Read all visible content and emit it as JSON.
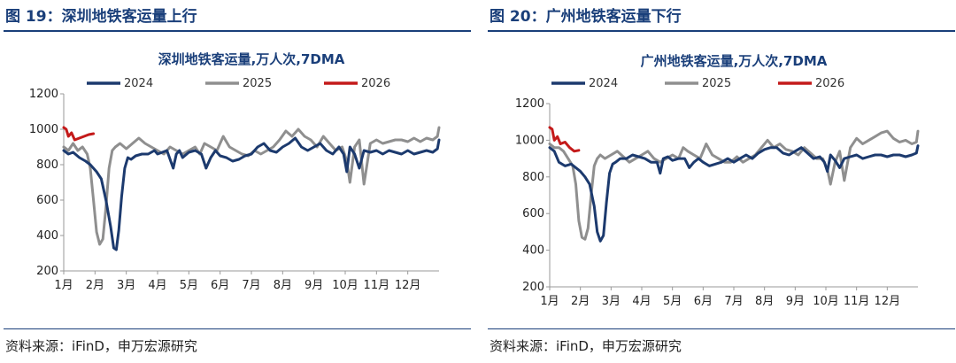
{
  "charts": [
    {
      "fig_title": "图 19：深圳地铁客运量上行",
      "source": "资料来源：iFinD，申万宏源研究",
      "chart_data": {
        "type": "line",
        "title": "深圳地铁客运量,万人次,7DMA",
        "ylim": [
          200,
          1200
        ],
        "yticks": [
          200,
          400,
          600,
          800,
          1000,
          1200
        ],
        "xlim": [
          0,
          12
        ],
        "xticks": [
          "1月",
          "2月",
          "3月",
          "4月",
          "5月",
          "6月",
          "7月",
          "8月",
          "9月",
          "10月",
          "11月",
          "12月"
        ],
        "legend_position": "top",
        "grid": false,
        "series": [
          {
            "name": "2024",
            "color": "#1c3a6e",
            "x": [
              0,
              0.15,
              0.3,
              0.5,
              0.7,
              0.85,
              0.95,
              1.05,
              1.2,
              1.35,
              1.5,
              1.6,
              1.68,
              1.76,
              1.85,
              1.95,
              2.05,
              2.15,
              2.3,
              2.5,
              2.7,
              2.9,
              3.0,
              3.15,
              3.3,
              3.5,
              3.6,
              3.7,
              3.8,
              4.0,
              4.2,
              4.4,
              4.55,
              4.7,
              4.85,
              5.0,
              5.2,
              5.4,
              5.6,
              5.8,
              6.0,
              6.2,
              6.4,
              6.6,
              6.8,
              7.0,
              7.2,
              7.4,
              7.6,
              7.8,
              8.0,
              8.2,
              8.4,
              8.6,
              8.8,
              8.95,
              9.05,
              9.15,
              9.3,
              9.45,
              9.6,
              9.8,
              10.0,
              10.2,
              10.4,
              10.6,
              10.8,
              11.0,
              11.2,
              11.4,
              11.6,
              11.8,
              11.95,
              12.0
            ],
            "y": [
              880,
              860,
              870,
              840,
              820,
              800,
              780,
              760,
              720,
              600,
              450,
              330,
              320,
              430,
              620,
              780,
              840,
              830,
              850,
              860,
              860,
              880,
              860,
              870,
              880,
              780,
              860,
              880,
              840,
              870,
              880,
              860,
              780,
              840,
              880,
              850,
              840,
              820,
              830,
              850,
              860,
              900,
              920,
              880,
              870,
              900,
              920,
              950,
              900,
              880,
              900,
              920,
              880,
              860,
              900,
              860,
              760,
              900,
              860,
              780,
              880,
              870,
              880,
              860,
              880,
              870,
              860,
              880,
              860,
              870,
              880,
              870,
              890,
              940
            ]
          },
          {
            "name": "2025",
            "color": "#8f8f8f",
            "x": [
              0,
              0.15,
              0.3,
              0.45,
              0.6,
              0.75,
              0.85,
              0.95,
              1.05,
              1.15,
              1.25,
              1.35,
              1.45,
              1.55,
              1.65,
              1.8,
              2.0,
              2.2,
              2.4,
              2.6,
              2.8,
              3.0,
              3.2,
              3.4,
              3.6,
              3.8,
              4.0,
              4.2,
              4.35,
              4.5,
              4.7,
              4.9,
              5.1,
              5.3,
              5.5,
              5.7,
              5.9,
              6.1,
              6.3,
              6.5,
              6.7,
              6.9,
              7.1,
              7.3,
              7.5,
              7.7,
              7.9,
              8.1,
              8.3,
              8.5,
              8.7,
              8.9,
              9.05,
              9.15,
              9.3,
              9.45,
              9.6,
              9.8,
              10.0,
              10.2,
              10.4,
              10.6,
              10.8,
              11.0,
              11.2,
              11.4,
              11.6,
              11.8,
              11.95,
              12.0
            ],
            "y": [
              900,
              880,
              920,
              880,
              900,
              860,
              780,
              600,
              420,
              350,
              380,
              560,
              780,
              880,
              900,
              920,
              890,
              920,
              950,
              920,
              900,
              880,
              860,
              900,
              880,
              860,
              880,
              900,
              860,
              920,
              900,
              880,
              960,
              900,
              880,
              860,
              850,
              880,
              860,
              880,
              900,
              940,
              990,
              960,
              1000,
              960,
              940,
              900,
              960,
              920,
              880,
              900,
              820,
              700,
              900,
              940,
              690,
              920,
              940,
              920,
              930,
              940,
              940,
              930,
              950,
              930,
              950,
              940,
              960,
              1010
            ]
          },
          {
            "name": "2026",
            "color": "#c41a1a",
            "x": [
              0,
              0.08,
              0.15,
              0.25,
              0.35,
              0.5,
              0.65,
              0.8,
              0.95
            ],
            "y": [
              1010,
              1000,
              960,
              980,
              940,
              950,
              960,
              970,
              975
            ]
          }
        ]
      }
    },
    {
      "fig_title": "图 20：广州地铁客运量下行",
      "source": "资料来源：iFinD，申万宏源研究",
      "chart_data": {
        "type": "line",
        "title": "广州地铁客运量,万人次,7DMA",
        "ylim": [
          200,
          1200
        ],
        "yticks": [
          200,
          400,
          600,
          800,
          1000,
          1200
        ],
        "xlim": [
          0,
          12
        ],
        "xticks": [
          "1月",
          "2月",
          "3月",
          "4月",
          "5月",
          "6月",
          "7月",
          "8月",
          "9月",
          "10月",
          "11月",
          "12月"
        ],
        "legend_position": "top",
        "grid": false,
        "series": [
          {
            "name": "2024",
            "color": "#1c3a6e",
            "x": [
              0,
              0.15,
              0.3,
              0.5,
              0.7,
              0.85,
              1.0,
              1.15,
              1.3,
              1.45,
              1.55,
              1.65,
              1.75,
              1.85,
              1.95,
              2.05,
              2.15,
              2.3,
              2.5,
              2.7,
              2.9,
              3.1,
              3.3,
              3.5,
              3.6,
              3.7,
              3.85,
              4.0,
              4.2,
              4.4,
              4.55,
              4.7,
              4.85,
              5.0,
              5.2,
              5.4,
              5.6,
              5.8,
              6.0,
              6.2,
              6.4,
              6.6,
              6.8,
              7.0,
              7.2,
              7.4,
              7.6,
              7.8,
              8.0,
              8.2,
              8.4,
              8.6,
              8.8,
              8.95,
              9.05,
              9.15,
              9.3,
              9.45,
              9.6,
              9.8,
              10.0,
              10.2,
              10.4,
              10.6,
              10.8,
              11.0,
              11.2,
              11.4,
              11.6,
              11.8,
              11.95,
              12.0
            ],
            "y": [
              960,
              940,
              880,
              860,
              870,
              850,
              830,
              800,
              760,
              640,
              500,
              450,
              480,
              660,
              820,
              870,
              880,
              900,
              900,
              920,
              910,
              900,
              880,
              880,
              820,
              900,
              910,
              890,
              900,
              900,
              850,
              880,
              900,
              880,
              860,
              870,
              880,
              900,
              880,
              900,
              920,
              900,
              930,
              950,
              960,
              960,
              930,
              920,
              940,
              960,
              930,
              900,
              910,
              880,
              830,
              920,
              890,
              850,
              900,
              910,
              920,
              900,
              910,
              920,
              920,
              910,
              920,
              920,
              910,
              920,
              930,
              970
            ]
          },
          {
            "name": "2025",
            "color": "#8f8f8f",
            "x": [
              0,
              0.15,
              0.3,
              0.45,
              0.6,
              0.75,
              0.85,
              0.95,
              1.05,
              1.15,
              1.25,
              1.35,
              1.45,
              1.55,
              1.65,
              1.8,
              2.0,
              2.2,
              2.4,
              2.6,
              2.8,
              3.0,
              3.2,
              3.4,
              3.6,
              3.8,
              4.0,
              4.2,
              4.35,
              4.5,
              4.7,
              4.9,
              5.1,
              5.3,
              5.5,
              5.7,
              5.9,
              6.1,
              6.3,
              6.5,
              6.7,
              6.9,
              7.1,
              7.3,
              7.5,
              7.7,
              7.9,
              8.1,
              8.3,
              8.5,
              8.7,
              8.9,
              9.05,
              9.15,
              9.3,
              9.45,
              9.6,
              9.8,
              10.0,
              10.2,
              10.4,
              10.6,
              10.8,
              11.0,
              11.2,
              11.4,
              11.6,
              11.8,
              11.95,
              12.0
            ],
            "y": [
              980,
              960,
              960,
              940,
              900,
              860,
              760,
              560,
              470,
              460,
              520,
              700,
              860,
              900,
              920,
              900,
              920,
              940,
              910,
              880,
              900,
              920,
              940,
              900,
              880,
              900,
              920,
              900,
              960,
              940,
              920,
              900,
              980,
              920,
              900,
              880,
              880,
              910,
              880,
              900,
              920,
              960,
              1000,
              960,
              980,
              950,
              940,
              920,
              960,
              930,
              900,
              900,
              840,
              760,
              880,
              940,
              780,
              960,
              1010,
              980,
              1000,
              1020,
              1040,
              1050,
              1010,
              990,
              1000,
              980,
              990,
              1050
            ]
          },
          {
            "name": "2026",
            "color": "#c41a1a",
            "x": [
              0,
              0.08,
              0.15,
              0.25,
              0.35,
              0.5,
              0.65,
              0.8,
              0.95
            ],
            "y": [
              1070,
              1060,
              1000,
              1020,
              980,
              990,
              960,
              940,
              945
            ]
          }
        ]
      }
    }
  ]
}
